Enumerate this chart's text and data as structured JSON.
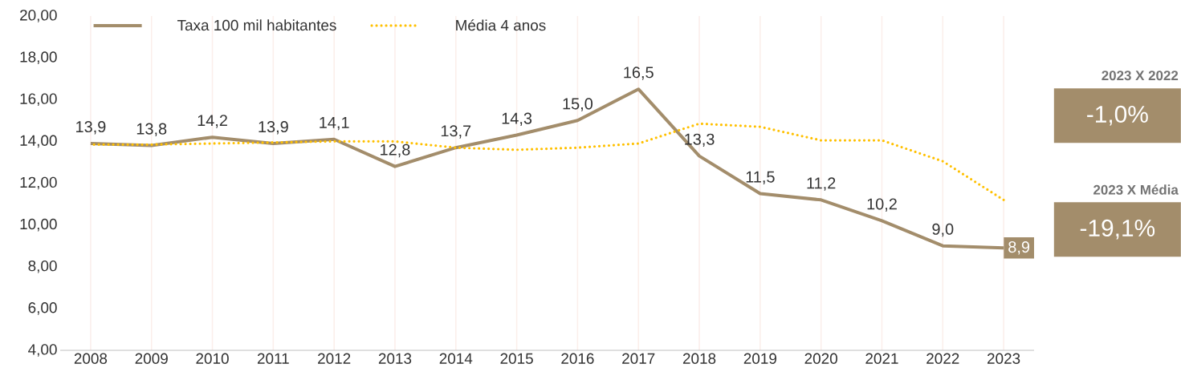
{
  "chart_data": {
    "type": "line",
    "categories": [
      "2008",
      "2009",
      "2010",
      "2011",
      "2012",
      "2013",
      "2014",
      "2015",
      "2016",
      "2017",
      "2018",
      "2019",
      "2020",
      "2021",
      "2022",
      "2023"
    ],
    "series": [
      {
        "name": "Taxa 100 mil habitantes",
        "color": "#a38d6b",
        "line_style": "solid",
        "values": [
          13.9,
          13.8,
          14.2,
          13.9,
          14.1,
          12.8,
          13.7,
          14.3,
          15.0,
          16.5,
          13.3,
          11.5,
          11.2,
          10.2,
          9.0,
          8.9
        ],
        "value_labels": [
          "13,9",
          "13,8",
          "14,2",
          "13,9",
          "14,1",
          "12,8",
          "13,7",
          "14,3",
          "15,0",
          "16,5",
          "13,3",
          "11,5",
          "11,2",
          "10,2",
          "9,0",
          "8,9"
        ]
      },
      {
        "name": "Média 4 anos",
        "color": "#ffc000",
        "line_style": "dotted",
        "values": [
          13.85,
          13.85,
          13.9,
          13.95,
          14.0,
          14.0,
          13.7,
          13.6,
          13.7,
          13.9,
          14.85,
          14.7,
          14.05,
          14.05,
          13.05,
          11.2
        ]
      }
    ],
    "ylim": [
      4,
      20
    ],
    "yticks": [
      {
        "value": 4,
        "label": "4,00"
      },
      {
        "value": 6,
        "label": "6,00"
      },
      {
        "value": 8,
        "label": "8,00"
      },
      {
        "value": 10,
        "label": "10,00"
      },
      {
        "value": 12,
        "label": "12,00"
      },
      {
        "value": 14,
        "label": "14,00"
      },
      {
        "value": 16,
        "label": "16,00"
      },
      {
        "value": 18,
        "label": "18,00"
      },
      {
        "value": 20,
        "label": "20,00"
      }
    ],
    "grid": "x",
    "legend": "top left",
    "marker": "none",
    "annotations": [
      "2023 X 2022",
      "-1,0%",
      "2023 X Média",
      "-19,1%"
    ]
  }
}
